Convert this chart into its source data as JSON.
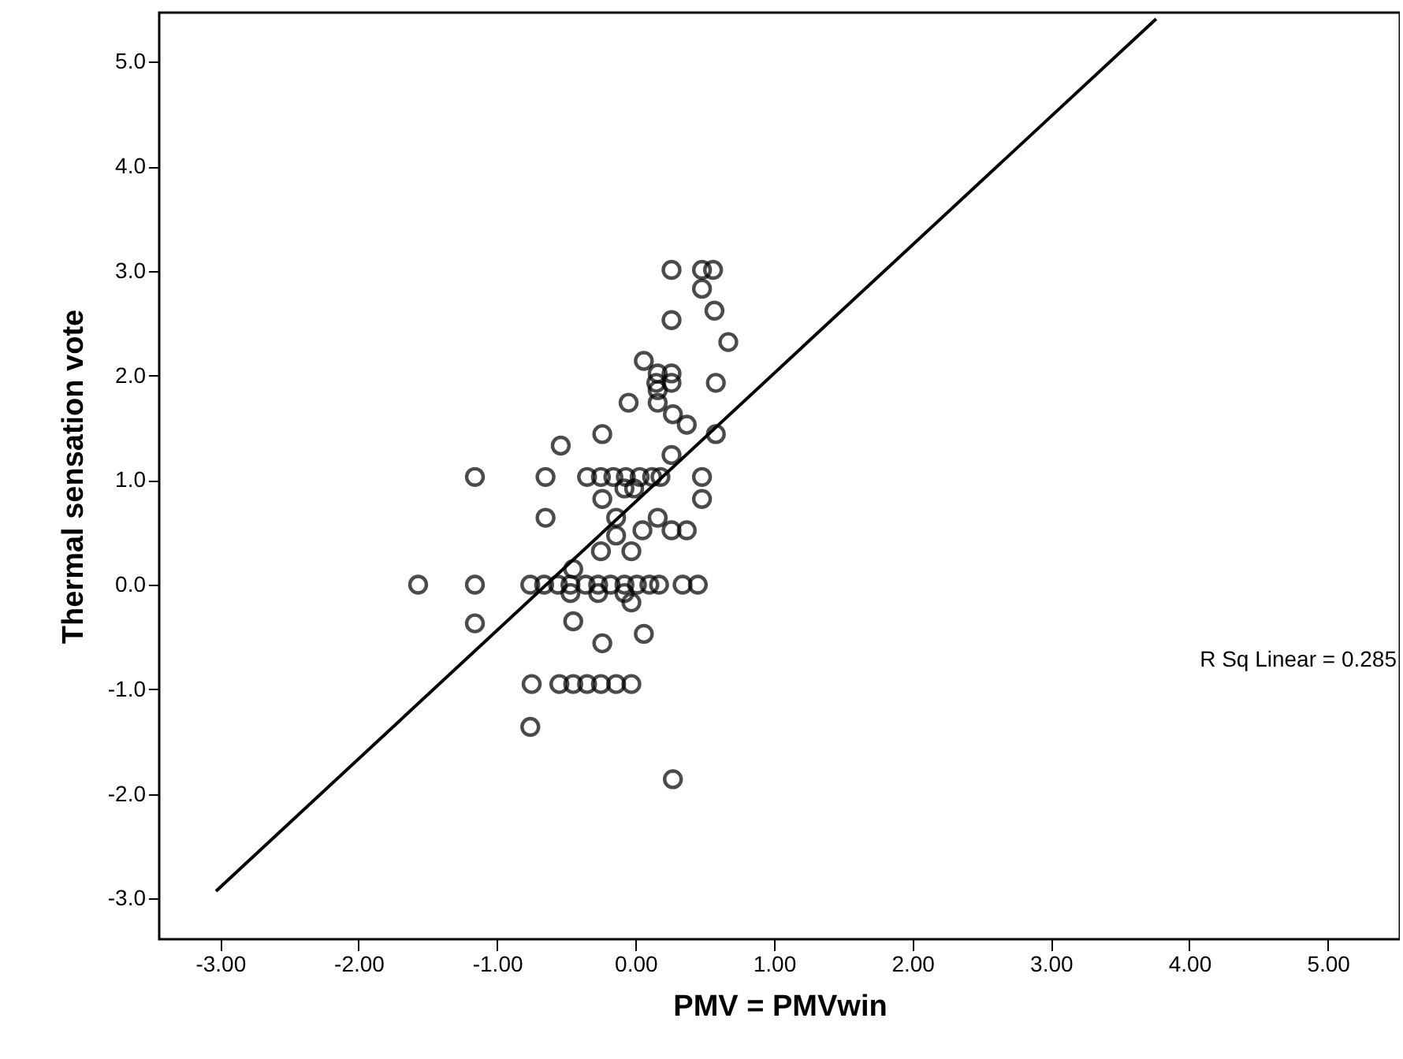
{
  "chart_data": {
    "type": "scatter",
    "xlabel": "PMV = PMVwin",
    "ylabel": "Thermal sensation vote",
    "xlim": [
      -3.44,
      5.52
    ],
    "ylim": [
      -3.39,
      5.47
    ],
    "xticks": [
      {
        "value": -3,
        "label": "-3.00"
      },
      {
        "value": -2,
        "label": "-2.00"
      },
      {
        "value": -1,
        "label": "-1.00"
      },
      {
        "value": 0,
        "label": "0.00"
      },
      {
        "value": 1,
        "label": "1.00"
      },
      {
        "value": 2,
        "label": "2.00"
      },
      {
        "value": 3,
        "label": "3.00"
      },
      {
        "value": 4,
        "label": "4.00"
      },
      {
        "value": 5,
        "label": "5.00"
      }
    ],
    "yticks": [
      {
        "value": -3,
        "label": "-3.0"
      },
      {
        "value": -2,
        "label": "-2.0"
      },
      {
        "value": -1,
        "label": "-1.0"
      },
      {
        "value": 0,
        "label": "0.0"
      },
      {
        "value": 1,
        "label": "1.0"
      },
      {
        "value": 2,
        "label": "2.0"
      },
      {
        "value": 3,
        "label": "3.0"
      },
      {
        "value": 4,
        "label": "4.0"
      },
      {
        "value": 5,
        "label": "5.0"
      }
    ],
    "grid": false,
    "marker": "circle",
    "annotations": [
      "R Sq Linear = 0.285"
    ],
    "series": [
      {
        "color": "#000000",
        "x": [
          -1.57,
          -1.16,
          -0.76,
          -0.66,
          -0.56,
          -0.47,
          -0.36,
          -0.27,
          -0.18,
          -0.08,
          0.01,
          0.1,
          0.17,
          0.34,
          0.45,
          -0.47,
          -0.27,
          -0.08,
          -0.03,
          -0.45,
          -0.25,
          -0.03,
          -0.14,
          0.05,
          0.26,
          0.37,
          -0.65,
          -0.14,
          0.16,
          -0.24,
          0.48,
          -0.08,
          -0.01,
          -1.16,
          -0.65,
          -0.35,
          -0.25,
          -0.16,
          -0.07,
          0.03,
          0.12,
          0.18,
          0.48,
          0.26,
          -0.54,
          -0.24,
          0.58,
          0.37,
          0.27,
          -0.05,
          0.16,
          0.16,
          0.15,
          0.26,
          0.58,
          0.26,
          0.48,
          0.56,
          0.48,
          0.57,
          0.26,
          0.67,
          0.06,
          0.16,
          0.26,
          -1.16,
          -0.45,
          -0.24,
          0.06,
          -0.75,
          -0.55,
          -0.45,
          -0.35,
          -0.25,
          -0.14,
          -0.03,
          -0.76,
          0.27
        ],
        "values": [
          0,
          0,
          0,
          0,
          0,
          0,
          0,
          0,
          0,
          0,
          0,
          0,
          0,
          0,
          0,
          -0.08,
          -0.08,
          -0.08,
          -0.17,
          0.15,
          0.32,
          0.32,
          0.47,
          0.52,
          0.52,
          0.52,
          0.64,
          0.64,
          0.64,
          0.82,
          0.82,
          0.92,
          0.92,
          1.03,
          1.03,
          1.03,
          1.03,
          1.03,
          1.03,
          1.03,
          1.03,
          1.03,
          1.03,
          1.24,
          1.33,
          1.44,
          1.44,
          1.53,
          1.63,
          1.74,
          1.74,
          1.86,
          1.93,
          1.93,
          1.93,
          3.01,
          3.01,
          3.01,
          2.83,
          2.62,
          2.53,
          2.32,
          2.14,
          2.02,
          2.02,
          -0.37,
          -0.35,
          -0.56,
          -0.47,
          -0.95,
          -0.95,
          -0.95,
          -0.95,
          -0.95,
          -0.95,
          -0.95,
          -1.36,
          -1.86
        ]
      },
      {
        "type": "line",
        "marker": "none",
        "color": "#000000",
        "x": [
          -3.03,
          3.76
        ],
        "values": [
          -2.93,
          5.41
        ]
      }
    ]
  }
}
